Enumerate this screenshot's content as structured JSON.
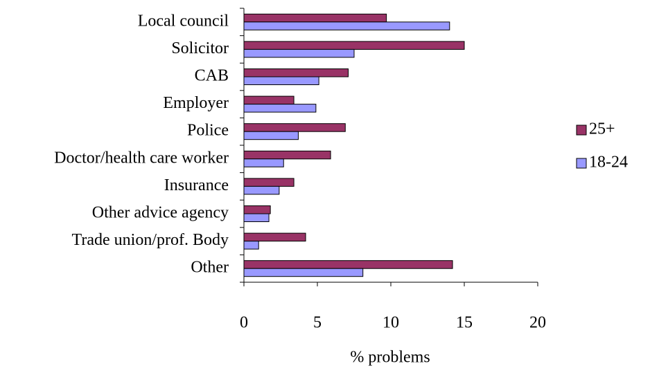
{
  "chart_data": {
    "type": "bar",
    "orientation": "horizontal",
    "categories": [
      "Local council",
      "Solicitor",
      "CAB",
      "Employer",
      "Police",
      "Doctor/health care worker",
      "Insurance",
      "Other advice agency",
      "Trade union/prof. Body",
      "Other"
    ],
    "series": [
      {
        "name": "25+",
        "color": "#993366",
        "values": [
          9.7,
          15.0,
          7.1,
          3.4,
          6.9,
          5.9,
          3.4,
          1.8,
          4.2,
          14.2
        ]
      },
      {
        "name": "18-24",
        "color": "#9999ff",
        "values": [
          14.0,
          7.5,
          5.1,
          4.9,
          3.7,
          2.7,
          2.4,
          1.7,
          1.0,
          8.1
        ]
      }
    ],
    "xlabel": "% problems",
    "xlim": [
      0,
      20
    ],
    "xticks": [
      0,
      5,
      10,
      15,
      20
    ],
    "legend": "right",
    "grid": false
  }
}
